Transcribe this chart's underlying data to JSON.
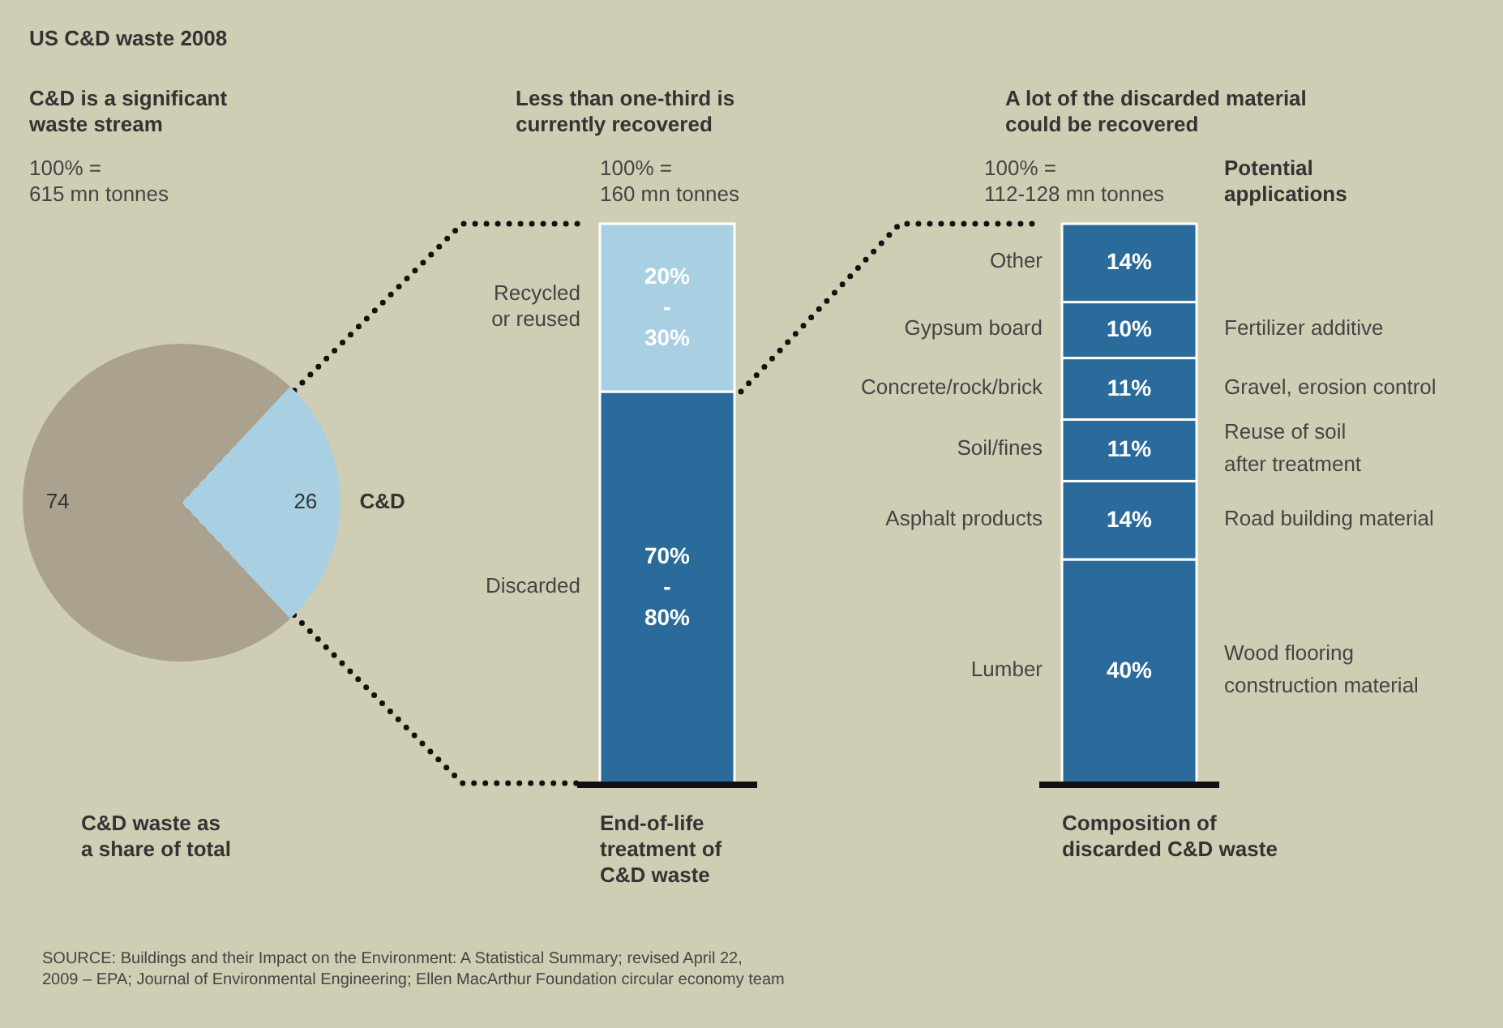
{
  "chart_data": [
    {
      "type": "pie",
      "title": "C&D is a significant\nwaste stream",
      "subtitle": "100% =\n615 mn tonnes",
      "xlabel": "C&D waste as\na share of total",
      "categories": [
        null,
        "C&D"
      ],
      "values": [
        74,
        26
      ],
      "colors": [
        "#aaa28f",
        "#a9cfe2"
      ],
      "data_labels": true,
      "annotations": [
        "US C&D waste 2008",
        "SOURCE: Buildings and their Impact on the Environment: A Statistical Summary; revised April 22,\n2009 – EPA; Journal of Environmental Engineering; Ellen MacArthur Foundation circular economy team"
      ]
    },
    {
      "type": "bar",
      "stacked": true,
      "title": "Less than one-third is\ncurrently recovered",
      "subtitle": "100% =\n160 mn tonnes",
      "xlabel": "End-of-life\ntreatment of\nC&D waste",
      "categories": [
        null
      ],
      "ylim": [
        0,
        100
      ],
      "series": [
        {
          "name": "Discarded",
          "color": "#2a6b9c",
          "values": [
            70
          ],
          "value_labels": [
            "70%\n-\n80%"
          ]
        },
        {
          "name": "Recycled\nor reused",
          "color": "#a9cfe2",
          "values": [
            30
          ],
          "value_labels": [
            "20%\n-\n30%"
          ]
        }
      ]
    },
    {
      "type": "bar",
      "stacked": true,
      "title": "A lot of the discarded material\ncould be recovered",
      "subtitle": "100% =\n112-128 mn tonnes",
      "xlabel": "Composition of\ndiscarded C&D waste",
      "categories": [
        null
      ],
      "ylim": [
        0,
        100
      ],
      "series": [
        {
          "name": "Lumber",
          "color": "#2a6b9c",
          "values": [
            40
          ],
          "value_labels": [
            "40%"
          ]
        },
        {
          "name": "Asphalt products",
          "color": "#2a6b9c",
          "values": [
            14
          ],
          "value_labels": [
            "14%"
          ]
        },
        {
          "name": "Soil/fines",
          "color": "#2a6b9c",
          "values": [
            11
          ],
          "value_labels": [
            "11%"
          ]
        },
        {
          "name": "Concrete/rock/brick",
          "color": "#2a6b9c",
          "values": [
            11
          ],
          "value_labels": [
            "11%"
          ]
        },
        {
          "name": "Gypsum board",
          "color": "#2a6b9c",
          "values": [
            10
          ],
          "value_labels": [
            "10%"
          ]
        },
        {
          "name": "Other",
          "color": "#2a6b9c",
          "values": [
            14
          ],
          "value_labels": [
            "14%"
          ]
        }
      ],
      "annotations": [
        "Potential\napplications",
        "Wood flooring\nconstruction material",
        "Road building material",
        "Reuse of soil\nafter treatment",
        "Gravel, erosion control",
        "Fertilizer additive"
      ]
    }
  ]
}
